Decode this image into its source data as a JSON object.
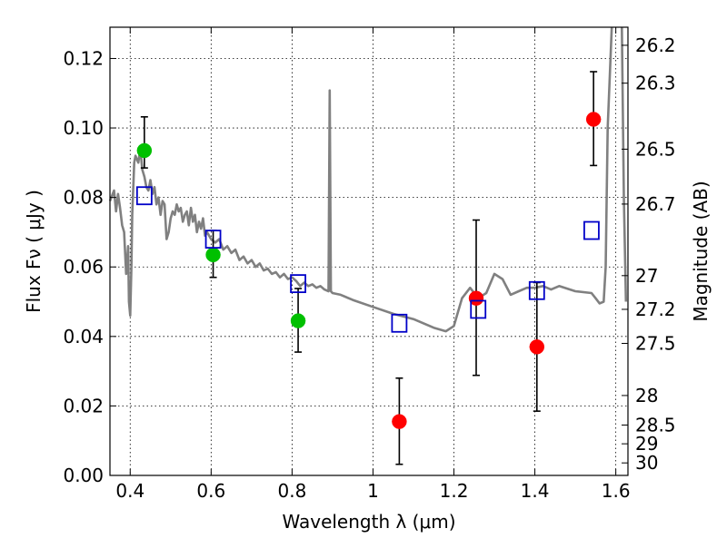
{
  "chart_data": {
    "type": "scatter",
    "xlabel": "Wavelength  λ (μm)",
    "ylabel_left": "Flux  Fν  ( μJy )",
    "ylabel_right": "Magnitude (AB)",
    "xlim": [
      0.35,
      1.63
    ],
    "ylim": [
      0.0,
      0.129
    ],
    "grid": true,
    "x_ticks": [
      {
        "value": 0.4,
        "label": "0.4"
      },
      {
        "value": 0.6,
        "label": "0.6"
      },
      {
        "value": 0.8,
        "label": "0.8"
      },
      {
        "value": 1.0,
        "label": "1"
      },
      {
        "value": 1.2,
        "label": "1.2"
      },
      {
        "value": 1.4,
        "label": "1.4"
      },
      {
        "value": 1.6,
        "label": "1.6"
      }
    ],
    "y_ticks": [
      {
        "value": 0.0,
        "label": "0.00"
      },
      {
        "value": 0.02,
        "label": "0.02"
      },
      {
        "value": 0.04,
        "label": "0.04"
      },
      {
        "value": 0.06,
        "label": "0.06"
      },
      {
        "value": 0.08,
        "label": "0.08"
      },
      {
        "value": 0.1,
        "label": "0.10"
      },
      {
        "value": 0.12,
        "label": "0.12"
      }
    ],
    "magnitude_ticks": [
      {
        "flux": 0.1238,
        "label": "26.2"
      },
      {
        "flux": 0.1129,
        "label": "26.3"
      },
      {
        "flux": 0.0939,
        "label": "26.5"
      },
      {
        "flux": 0.0781,
        "label": "26.7"
      },
      {
        "flux": 0.0575,
        "label": "27"
      },
      {
        "flux": 0.0478,
        "label": "27.2"
      },
      {
        "flux": 0.038,
        "label": "27.5"
      },
      {
        "flux": 0.023,
        "label": "28"
      },
      {
        "flux": 0.0145,
        "label": "28.5"
      },
      {
        "flux": 0.0091,
        "label": "29"
      },
      {
        "flux": 0.0036,
        "label": "30"
      }
    ],
    "series": [
      {
        "kind": "line",
        "color": "#808080",
        "points": [
          [
            0.35,
            0.079
          ],
          [
            0.36,
            0.082
          ],
          [
            0.365,
            0.076
          ],
          [
            0.37,
            0.081
          ],
          [
            0.375,
            0.077
          ],
          [
            0.38,
            0.072
          ],
          [
            0.385,
            0.07
          ],
          [
            0.39,
            0.058
          ],
          [
            0.395,
            0.066
          ],
          [
            0.397,
            0.05
          ],
          [
            0.4,
            0.046
          ],
          [
            0.403,
            0.06
          ],
          [
            0.405,
            0.075
          ],
          [
            0.41,
            0.09
          ],
          [
            0.413,
            0.092
          ],
          [
            0.42,
            0.09
          ],
          [
            0.425,
            0.094
          ],
          [
            0.43,
            0.088
          ],
          [
            0.435,
            0.086
          ],
          [
            0.44,
            0.083
          ],
          [
            0.445,
            0.082
          ],
          [
            0.45,
            0.085
          ],
          [
            0.455,
            0.081
          ],
          [
            0.46,
            0.083
          ],
          [
            0.465,
            0.078
          ],
          [
            0.47,
            0.08
          ],
          [
            0.475,
            0.075
          ],
          [
            0.48,
            0.079
          ],
          [
            0.485,
            0.078
          ],
          [
            0.49,
            0.068
          ],
          [
            0.495,
            0.07
          ],
          [
            0.5,
            0.074
          ],
          [
            0.505,
            0.076
          ],
          [
            0.51,
            0.075
          ],
          [
            0.515,
            0.078
          ],
          [
            0.52,
            0.076
          ],
          [
            0.525,
            0.077
          ],
          [
            0.53,
            0.073
          ],
          [
            0.535,
            0.075
          ],
          [
            0.54,
            0.076
          ],
          [
            0.545,
            0.072
          ],
          [
            0.55,
            0.077
          ],
          [
            0.555,
            0.073
          ],
          [
            0.56,
            0.075
          ],
          [
            0.565,
            0.07
          ],
          [
            0.57,
            0.073
          ],
          [
            0.575,
            0.071
          ],
          [
            0.58,
            0.074
          ],
          [
            0.585,
            0.069
          ],
          [
            0.59,
            0.07
          ],
          [
            0.6,
            0.068
          ],
          [
            0.61,
            0.067
          ],
          [
            0.62,
            0.068
          ],
          [
            0.63,
            0.065
          ],
          [
            0.64,
            0.066
          ],
          [
            0.65,
            0.064
          ],
          [
            0.66,
            0.065
          ],
          [
            0.67,
            0.062
          ],
          [
            0.68,
            0.063
          ],
          [
            0.69,
            0.061
          ],
          [
            0.7,
            0.062
          ],
          [
            0.71,
            0.06
          ],
          [
            0.72,
            0.061
          ],
          [
            0.73,
            0.059
          ],
          [
            0.74,
            0.0595
          ],
          [
            0.75,
            0.058
          ],
          [
            0.76,
            0.0585
          ],
          [
            0.77,
            0.057
          ],
          [
            0.78,
            0.058
          ],
          [
            0.79,
            0.0565
          ],
          [
            0.8,
            0.057
          ],
          [
            0.81,
            0.056
          ],
          [
            0.82,
            0.0545
          ],
          [
            0.83,
            0.0555
          ],
          [
            0.84,
            0.0545
          ],
          [
            0.85,
            0.055
          ],
          [
            0.86,
            0.054
          ],
          [
            0.87,
            0.0545
          ],
          [
            0.88,
            0.0535
          ],
          [
            0.89,
            0.053
          ],
          [
            0.893,
            0.1108
          ],
          [
            0.896,
            0.053
          ],
          [
            0.9,
            0.0525
          ],
          [
            0.92,
            0.052
          ],
          [
            0.95,
            0.0505
          ],
          [
            1.0,
            0.0485
          ],
          [
            1.05,
            0.0465
          ],
          [
            1.1,
            0.045
          ],
          [
            1.15,
            0.0425
          ],
          [
            1.18,
            0.0415
          ],
          [
            1.2,
            0.043
          ],
          [
            1.22,
            0.051
          ],
          [
            1.24,
            0.054
          ],
          [
            1.26,
            0.051
          ],
          [
            1.28,
            0.0525
          ],
          [
            1.3,
            0.058
          ],
          [
            1.32,
            0.0565
          ],
          [
            1.34,
            0.052
          ],
          [
            1.36,
            0.053
          ],
          [
            1.38,
            0.054
          ],
          [
            1.4,
            0.054
          ],
          [
            1.42,
            0.0545
          ],
          [
            1.44,
            0.0535
          ],
          [
            1.46,
            0.0545
          ],
          [
            1.5,
            0.053
          ],
          [
            1.54,
            0.0525
          ],
          [
            1.55,
            0.051
          ],
          [
            1.56,
            0.0495
          ],
          [
            1.57,
            0.05
          ],
          [
            1.575,
            0.06
          ],
          [
            1.58,
            0.1
          ],
          [
            1.59,
            0.129
          ]
        ]
      },
      {
        "kind": "line",
        "color": "#808080",
        "points": [
          [
            1.615,
            0.129
          ],
          [
            1.62,
            0.08
          ],
          [
            1.625,
            0.05
          ]
        ]
      },
      {
        "kind": "points",
        "marker": "circle",
        "color": "#00c000",
        "points": [
          [
            0.435,
            0.0935
          ],
          [
            0.605,
            0.0635
          ],
          [
            0.815,
            0.0445
          ]
        ]
      },
      {
        "kind": "points",
        "marker": "circle",
        "color": "#ff0000",
        "points": [
          [
            1.065,
            0.0155
          ],
          [
            1.255,
            0.051
          ],
          [
            1.405,
            0.037
          ],
          [
            1.545,
            0.1025
          ]
        ]
      },
      {
        "kind": "points",
        "marker": "square",
        "color": "#0000c8",
        "points": [
          [
            0.435,
            0.0805
          ],
          [
            0.605,
            0.068
          ],
          [
            0.815,
            0.0552
          ],
          [
            1.065,
            0.0438
          ],
          [
            1.26,
            0.0478
          ],
          [
            1.405,
            0.0532
          ],
          [
            1.54,
            0.0705
          ]
        ]
      }
    ],
    "error_bars": [
      {
        "x": 0.435,
        "low": 0.0885,
        "high": 0.1032
      },
      {
        "x": 0.605,
        "low": 0.057,
        "high": 0.0705
      },
      {
        "x": 0.815,
        "low": 0.0355,
        "high": 0.0538
      },
      {
        "x": 1.065,
        "low": 0.0032,
        "high": 0.028
      },
      {
        "x": 1.255,
        "low": 0.0288,
        "high": 0.0735
      },
      {
        "x": 1.405,
        "low": 0.0185,
        "high": 0.0555
      },
      {
        "x": 1.545,
        "low": 0.0892,
        "high": 0.1162
      }
    ]
  }
}
